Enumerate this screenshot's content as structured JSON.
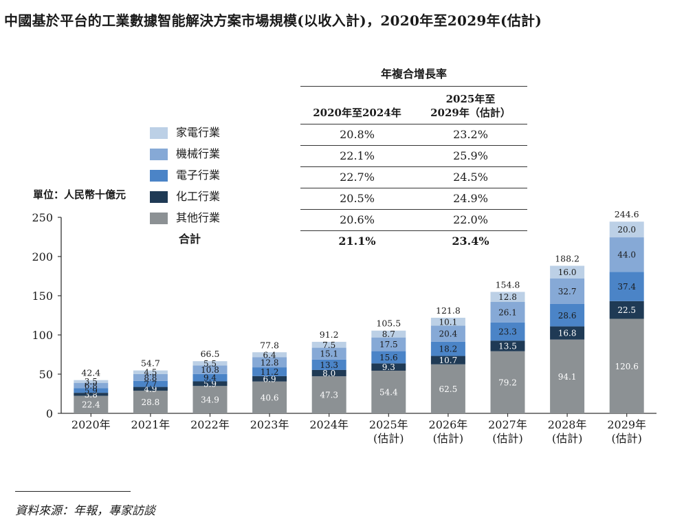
{
  "title": "中國基於平台的工業數據智能解決方案市場規模(以收入計)，2020年至2029年(估計)",
  "unit_label": "單位：人民幣十億元",
  "source": "資料來源：年報，專家訪談",
  "colors": {
    "home_appliance": "#bcd0e6",
    "machinery": "#86a9d6",
    "electronics": "#4b84c7",
    "chemical": "#1f3a55",
    "other": "#8c9194",
    "axis": "#333333"
  },
  "cagr_table": {
    "heading": "年複合增長率",
    "col1_line1": "2020年至2024年",
    "col2_line1": "2025年至",
    "col2_line2": "2029年（估計）",
    "rows": [
      {
        "c1": "20.8%",
        "c2": "23.2%"
      },
      {
        "c1": "22.1%",
        "c2": "25.9%"
      },
      {
        "c1": "22.7%",
        "c2": "24.5%"
      },
      {
        "c1": "20.5%",
        "c2": "24.9%"
      },
      {
        "c1": "20.6%",
        "c2": "22.0%"
      },
      {
        "c1": "21.1%",
        "c2": "23.4%"
      }
    ]
  },
  "legend": {
    "items": [
      "家電行業",
      "機械行業",
      "電子行業",
      "化工行業",
      "其他行業"
    ],
    "total_label": "合計"
  },
  "chart_data": {
    "type": "bar",
    "stacked": true,
    "categories": [
      [
        "2020年"
      ],
      [
        "2021年"
      ],
      [
        "2022年"
      ],
      [
        "2023年"
      ],
      [
        "2024年"
      ],
      [
        "2025年",
        "(估計)"
      ],
      [
        "2026年",
        "(估計)"
      ],
      [
        "2027年",
        "(估計)"
      ],
      [
        "2028年",
        "(估計)"
      ],
      [
        "2029年",
        "(估計)"
      ]
    ],
    "series": [
      {
        "name": "其他行業",
        "key": "other",
        "values": [
          22.4,
          28.8,
          34.9,
          40.6,
          47.3,
          54.4,
          62.5,
          79.2,
          94.1,
          120.6
        ]
      },
      {
        "name": "化工行業",
        "key": "chemical",
        "values": [
          3.8,
          4.9,
          5.9,
          6.9,
          8.0,
          9.3,
          10.7,
          13.5,
          16.8,
          22.5
        ]
      },
      {
        "name": "電子行業",
        "key": "electronics",
        "values": [
          5.9,
          7.7,
          9.4,
          11.2,
          13.3,
          15.6,
          18.2,
          23.3,
          28.6,
          37.4
        ]
      },
      {
        "name": "機械行業",
        "key": "machinery",
        "values": [
          6.8,
          8.8,
          10.8,
          12.8,
          15.1,
          17.5,
          20.4,
          26.1,
          32.7,
          44.0
        ]
      },
      {
        "name": "家電行業",
        "key": "home_appliance",
        "values": [
          3.5,
          4.5,
          5.5,
          6.4,
          7.5,
          8.7,
          10.1,
          12.8,
          16.0,
          20.0
        ]
      }
    ],
    "totals": [
      42.4,
      54.7,
      66.5,
      77.8,
      91.2,
      105.5,
      121.8,
      154.8,
      188.2,
      244.6
    ],
    "ylim": [
      0,
      250
    ],
    "yticks": [
      0,
      50,
      100,
      150,
      200,
      250
    ],
    "grid": false,
    "legend_position": "top-left"
  }
}
